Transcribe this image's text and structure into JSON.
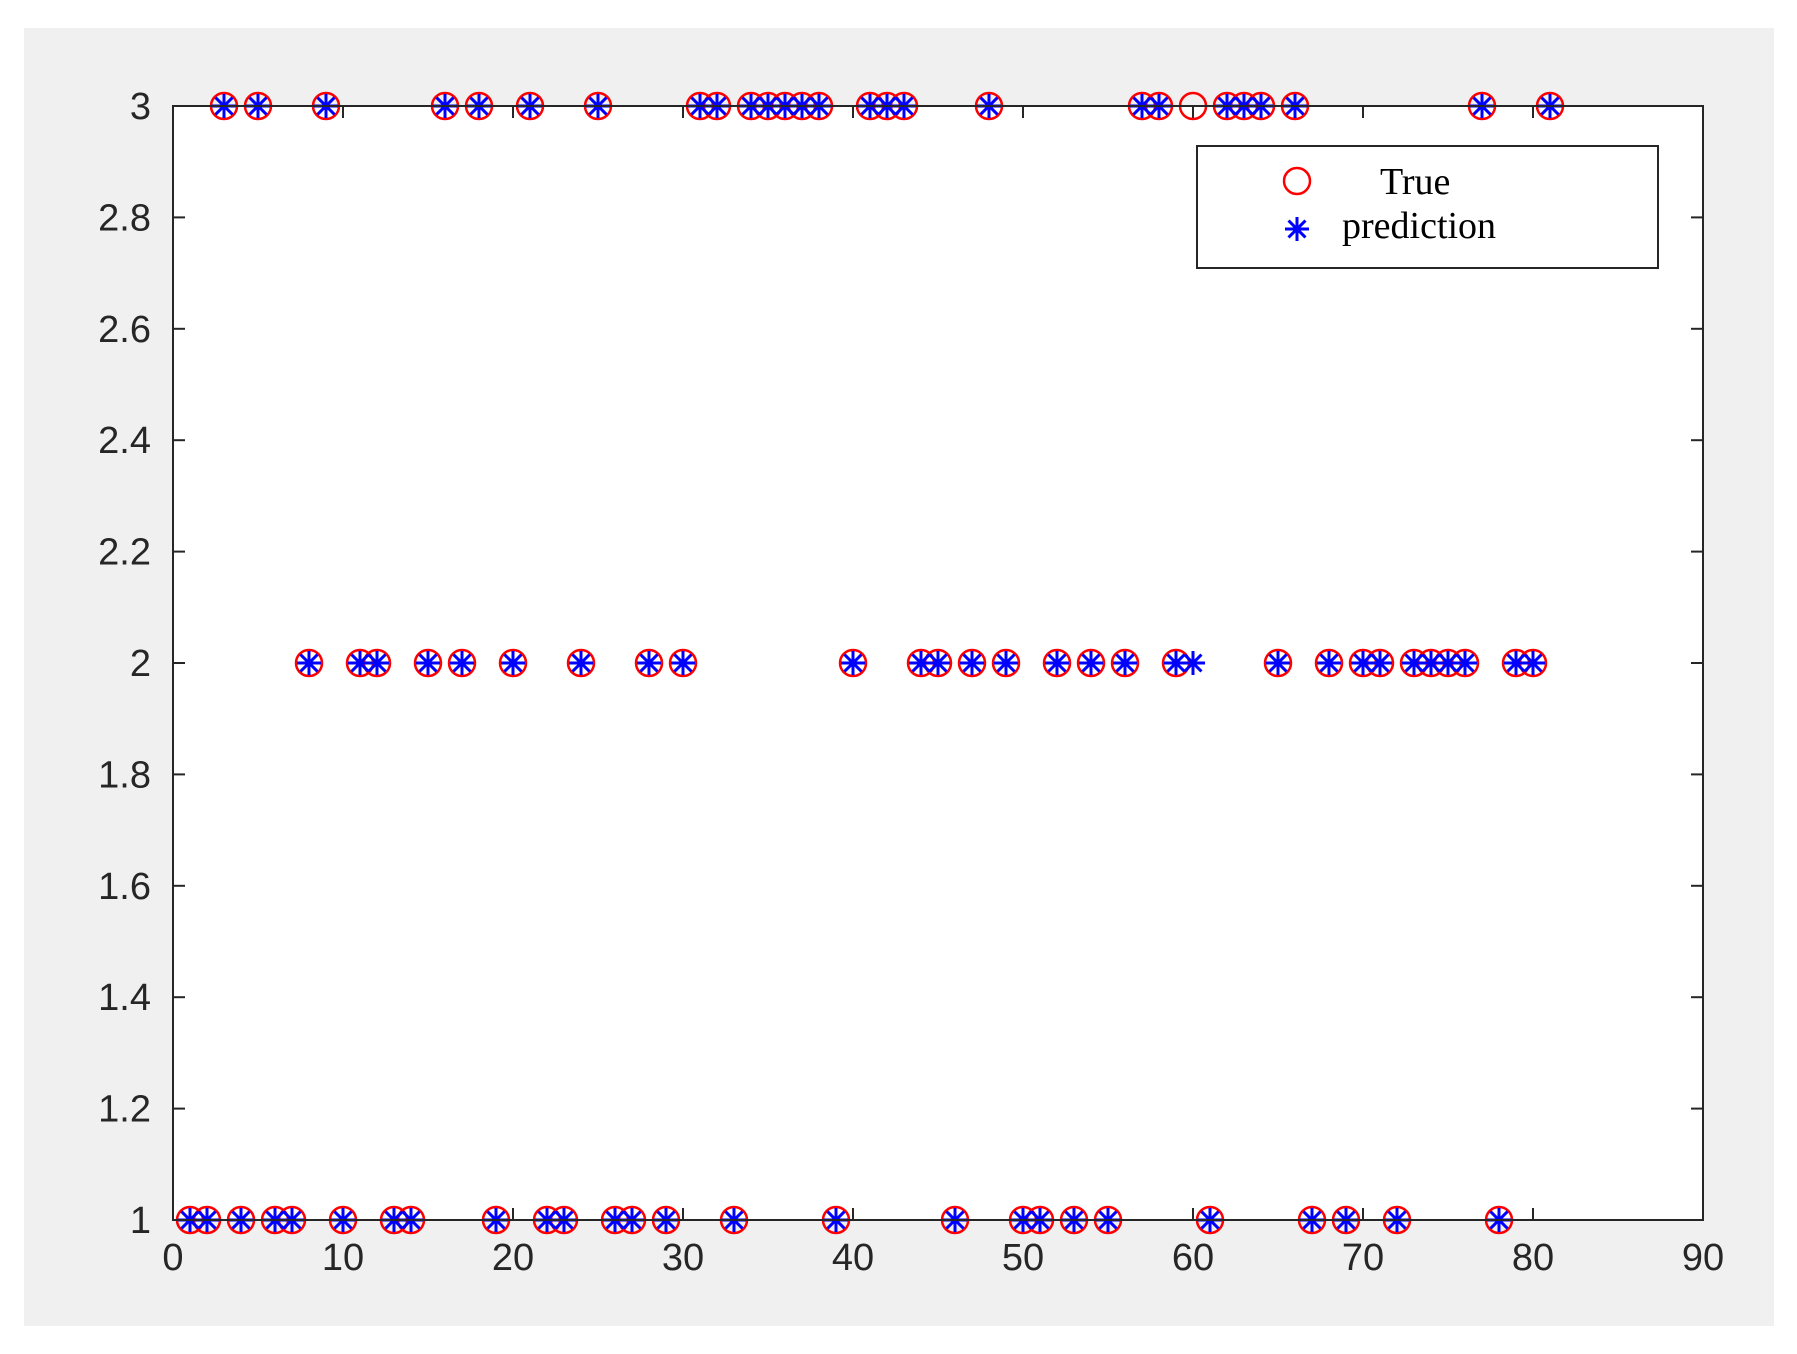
{
  "chart_data": {
    "type": "scatter",
    "xlim": [
      0,
      90
    ],
    "ylim": [
      1,
      3
    ],
    "x_ticks": [
      "0",
      "10",
      "20",
      "30",
      "40",
      "50",
      "60",
      "70",
      "80",
      "90"
    ],
    "x_tick_values": [
      0,
      10,
      20,
      30,
      40,
      50,
      60,
      70,
      80,
      90
    ],
    "y_ticks": [
      "1",
      "1.2",
      "1.4",
      "1.6",
      "1.8",
      "2",
      "2.2",
      "2.4",
      "2.6",
      "2.8",
      "3"
    ],
    "y_tick_values": [
      1,
      1.2,
      1.4,
      1.6,
      1.8,
      2,
      2.2,
      2.4,
      2.6,
      2.8,
      3
    ],
    "grid": false,
    "legend_position": "top-right",
    "series": [
      {
        "name": "True",
        "marker": "circle",
        "color": "#ff0000",
        "points": [
          [
            1,
            1
          ],
          [
            2,
            1
          ],
          [
            3,
            3
          ],
          [
            4,
            1
          ],
          [
            5,
            3
          ],
          [
            6,
            1
          ],
          [
            7,
            1
          ],
          [
            8,
            2
          ],
          [
            9,
            3
          ],
          [
            10,
            1
          ],
          [
            11,
            2
          ],
          [
            12,
            2
          ],
          [
            13,
            1
          ],
          [
            14,
            1
          ],
          [
            15,
            2
          ],
          [
            16,
            3
          ],
          [
            17,
            2
          ],
          [
            18,
            3
          ],
          [
            19,
            1
          ],
          [
            20,
            2
          ],
          [
            21,
            3
          ],
          [
            22,
            1
          ],
          [
            23,
            1
          ],
          [
            24,
            2
          ],
          [
            25,
            3
          ],
          [
            26,
            1
          ],
          [
            27,
            1
          ],
          [
            28,
            2
          ],
          [
            29,
            1
          ],
          [
            30,
            2
          ],
          [
            31,
            3
          ],
          [
            32,
            3
          ],
          [
            33,
            1
          ],
          [
            34,
            3
          ],
          [
            35,
            3
          ],
          [
            36,
            3
          ],
          [
            37,
            3
          ],
          [
            38,
            3
          ],
          [
            39,
            1
          ],
          [
            40,
            2
          ],
          [
            41,
            3
          ],
          [
            42,
            3
          ],
          [
            43,
            3
          ],
          [
            44,
            2
          ],
          [
            45,
            2
          ],
          [
            46,
            1
          ],
          [
            47,
            2
          ],
          [
            48,
            3
          ],
          [
            49,
            2
          ],
          [
            50,
            1
          ],
          [
            51,
            1
          ],
          [
            52,
            2
          ],
          [
            53,
            1
          ],
          [
            54,
            2
          ],
          [
            55,
            1
          ],
          [
            56,
            2
          ],
          [
            57,
            3
          ],
          [
            58,
            3
          ],
          [
            59,
            2
          ],
          [
            60,
            3
          ],
          [
            61,
            1
          ],
          [
            62,
            3
          ],
          [
            63,
            3
          ],
          [
            64,
            3
          ],
          [
            65,
            2
          ],
          [
            66,
            3
          ],
          [
            67,
            1
          ],
          [
            68,
            2
          ],
          [
            69,
            1
          ],
          [
            70,
            2
          ],
          [
            71,
            2
          ],
          [
            72,
            1
          ],
          [
            73,
            2
          ],
          [
            74,
            2
          ],
          [
            75,
            2
          ],
          [
            76,
            2
          ],
          [
            77,
            3
          ],
          [
            78,
            1
          ],
          [
            79,
            2
          ],
          [
            80,
            2
          ],
          [
            81,
            3
          ]
        ]
      },
      {
        "name": "prediction",
        "marker": "asterisk",
        "color": "#0000ff",
        "points": [
          [
            1,
            1
          ],
          [
            2,
            1
          ],
          [
            3,
            3
          ],
          [
            4,
            1
          ],
          [
            5,
            3
          ],
          [
            6,
            1
          ],
          [
            7,
            1
          ],
          [
            8,
            2
          ],
          [
            9,
            3
          ],
          [
            10,
            1
          ],
          [
            11,
            2
          ],
          [
            12,
            2
          ],
          [
            13,
            1
          ],
          [
            14,
            1
          ],
          [
            15,
            2
          ],
          [
            16,
            3
          ],
          [
            17,
            2
          ],
          [
            18,
            3
          ],
          [
            19,
            1
          ],
          [
            20,
            2
          ],
          [
            21,
            3
          ],
          [
            22,
            1
          ],
          [
            23,
            1
          ],
          [
            24,
            2
          ],
          [
            25,
            3
          ],
          [
            26,
            1
          ],
          [
            27,
            1
          ],
          [
            28,
            2
          ],
          [
            29,
            1
          ],
          [
            30,
            2
          ],
          [
            31,
            3
          ],
          [
            32,
            3
          ],
          [
            33,
            1
          ],
          [
            34,
            3
          ],
          [
            35,
            3
          ],
          [
            36,
            3
          ],
          [
            37,
            3
          ],
          [
            38,
            3
          ],
          [
            39,
            1
          ],
          [
            40,
            2
          ],
          [
            41,
            3
          ],
          [
            42,
            3
          ],
          [
            43,
            3
          ],
          [
            44,
            2
          ],
          [
            45,
            2
          ],
          [
            46,
            1
          ],
          [
            47,
            2
          ],
          [
            48,
            3
          ],
          [
            49,
            2
          ],
          [
            50,
            1
          ],
          [
            51,
            1
          ],
          [
            52,
            2
          ],
          [
            53,
            1
          ],
          [
            54,
            2
          ],
          [
            55,
            1
          ],
          [
            56,
            2
          ],
          [
            57,
            3
          ],
          [
            58,
            3
          ],
          [
            59,
            2
          ],
          [
            60,
            2
          ],
          [
            61,
            1
          ],
          [
            62,
            3
          ],
          [
            63,
            3
          ],
          [
            64,
            3
          ],
          [
            65,
            2
          ],
          [
            66,
            3
          ],
          [
            67,
            1
          ],
          [
            68,
            2
          ],
          [
            69,
            1
          ],
          [
            70,
            2
          ],
          [
            71,
            2
          ],
          [
            72,
            1
          ],
          [
            73,
            2
          ],
          [
            74,
            2
          ],
          [
            75,
            2
          ],
          [
            76,
            2
          ],
          [
            77,
            3
          ],
          [
            78,
            1
          ],
          [
            79,
            2
          ],
          [
            80,
            2
          ],
          [
            81,
            3
          ]
        ]
      }
    ]
  }
}
